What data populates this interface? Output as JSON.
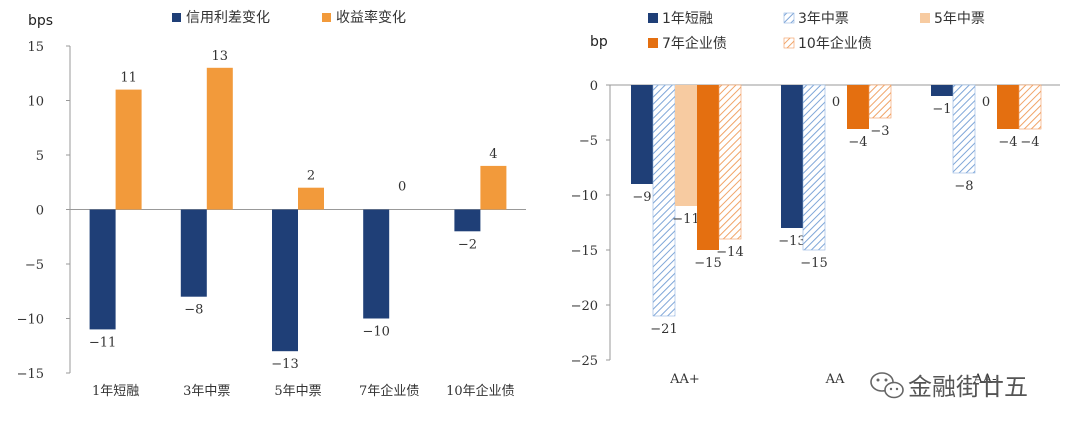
{
  "watermark": "金融街廿五",
  "chart_data": [
    {
      "type": "bar",
      "ylabel": "bps",
      "ylim": [
        -15,
        15
      ],
      "yticks": [
        15,
        10,
        5,
        0,
        -5,
        -10,
        -15
      ],
      "categories": [
        "1年短融",
        "3年中票",
        "5年中票",
        "7年企业债",
        "10年企业债"
      ],
      "series": [
        {
          "name": "信用利差变化",
          "color": "#1f3f77",
          "pattern": "solid",
          "values": [
            -11,
            -8,
            -13,
            -10,
            -2
          ]
        },
        {
          "name": "收益率变化",
          "color": "#f29a3b",
          "pattern": "solid",
          "values": [
            11,
            13,
            2,
            0,
            4
          ]
        }
      ],
      "legend": "top",
      "grid": false
    },
    {
      "type": "bar",
      "ylabel": "bp",
      "ylim": [
        -25,
        0
      ],
      "yticks": [
        0,
        -5,
        -10,
        -15,
        -20,
        -25
      ],
      "categories": [
        "AA+",
        "AA",
        "AA-"
      ],
      "series": [
        {
          "name": "1年短融",
          "color": "#1f3f77",
          "pattern": "solid",
          "values": [
            -9,
            -13,
            -1
          ]
        },
        {
          "name": "3年中票",
          "color": "#8fb4e0",
          "pattern": "hatch",
          "values": [
            -21,
            -15,
            -8
          ]
        },
        {
          "name": "5年中票",
          "color": "#f7cba1",
          "pattern": "solid",
          "values": [
            -11,
            0,
            0
          ]
        },
        {
          "name": "7年企业债",
          "color": "#e46f10",
          "pattern": "solid",
          "values": [
            -15,
            -4,
            -4
          ]
        },
        {
          "name": "10年企业债",
          "color": "#f29a5a",
          "pattern": "hatch",
          "values": [
            -14,
            -3,
            -4
          ]
        }
      ],
      "legend": "top",
      "grid": false
    }
  ]
}
